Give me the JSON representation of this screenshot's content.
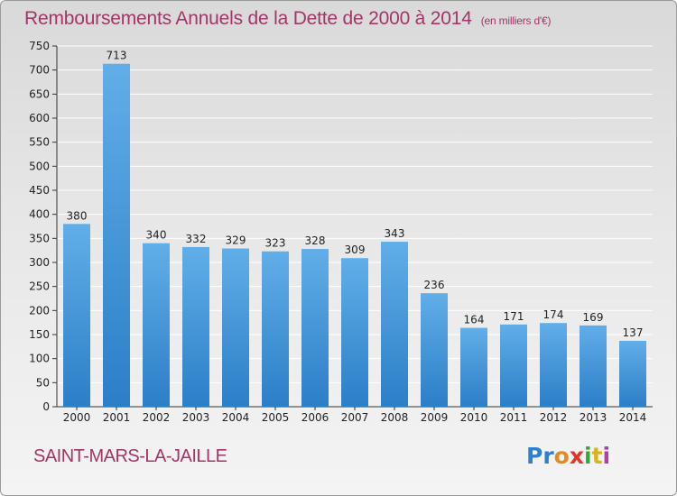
{
  "chart_data": {
    "type": "bar",
    "title": "Remboursements Annuels de la Dette de 2000 à 2014",
    "unit_note": "(en milliers d'€)",
    "categories": [
      "2000",
      "2001",
      "2002",
      "2003",
      "2004",
      "2005",
      "2006",
      "2007",
      "2008",
      "2009",
      "2010",
      "2011",
      "2012",
      "2013",
      "2014"
    ],
    "values": [
      380,
      713,
      340,
      332,
      329,
      323,
      328,
      309,
      343,
      236,
      164,
      171,
      174,
      169,
      137
    ],
    "ylim": [
      0,
      750
    ],
    "yticks": [
      0,
      50,
      100,
      150,
      200,
      250,
      300,
      350,
      400,
      450,
      500,
      550,
      600,
      650,
      700,
      750
    ],
    "grid": true,
    "bar_color_top": "#61aee8",
    "bar_color_bottom": "#2b7fc7"
  },
  "footer": {
    "city": "SAINT-MARS-LA-JAILLE",
    "logo": [
      "Pr",
      "o",
      "x",
      "i",
      "t",
      "i"
    ]
  },
  "colors": {
    "title": "#a4346a",
    "grid": "#ffffff"
  }
}
